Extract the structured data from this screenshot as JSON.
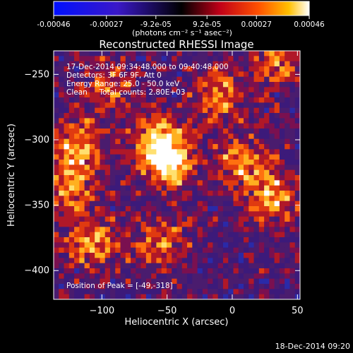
{
  "colorbar": {
    "tick_labels": [
      "-0.00046",
      "-0.00027",
      "-9.2e-05",
      "9.2e-05",
      "0.00027",
      "0.00046"
    ],
    "tick_values": [
      -0.00046,
      -0.00027,
      -9.2e-05,
      9.2e-05,
      0.00027,
      0.00046
    ],
    "range": [
      -0.00046,
      0.00046
    ],
    "units": "(photons cm⁻² s⁻¹ asec⁻²)"
  },
  "chart_data": {
    "type": "heatmap",
    "title": "Reconstructed RHESSI Image",
    "xlabel": "Heliocentric X (arcsec)",
    "ylabel": "Heliocentric Y (arcsec)",
    "xlim": [
      -137,
      52
    ],
    "ylim": [
      -422,
      -232
    ],
    "xticks": [
      -100,
      -50,
      0,
      50
    ],
    "yticks": [
      -250,
      -300,
      -350,
      -400
    ],
    "xtick_labels": [
      "−100",
      "−50",
      "0",
      "50"
    ],
    "ytick_labels": [
      "−250",
      "−300",
      "−350",
      "−400"
    ],
    "hot_spots": [
      {
        "x": -49,
        "y": -318,
        "level": 1.0
      },
      {
        "x": -57,
        "y": -300,
        "level": 0.85
      },
      {
        "x": -118,
        "y": -306,
        "level": 0.8
      },
      {
        "x": -125,
        "y": -338,
        "level": 0.75
      },
      {
        "x": -108,
        "y": -378,
        "level": 0.85
      },
      {
        "x": -55,
        "y": -378,
        "level": 0.7
      },
      {
        "x": 8,
        "y": -318,
        "level": 0.75
      },
      {
        "x": 30,
        "y": -345,
        "level": 0.85
      },
      {
        "x": -10,
        "y": -265,
        "level": 0.7
      },
      {
        "x": 32,
        "y": -240,
        "level": 0.65
      },
      {
        "x": -95,
        "y": -262,
        "level": 0.6
      }
    ],
    "annotations": {
      "time": "17-Dec-2014 09:34:48.000 to 09:40:48.000",
      "detectors": "Detectors: 3F 6F 9F, Att 0",
      "energy": "Energy Range: 25.0 - 50.0 keV",
      "clean": "Clean     Total counts: 2.80E+03",
      "peak": "Position of Peak = [-49,-318]"
    }
  },
  "footer": {
    "timestamp": "18-Dec-2014 09:20"
  }
}
